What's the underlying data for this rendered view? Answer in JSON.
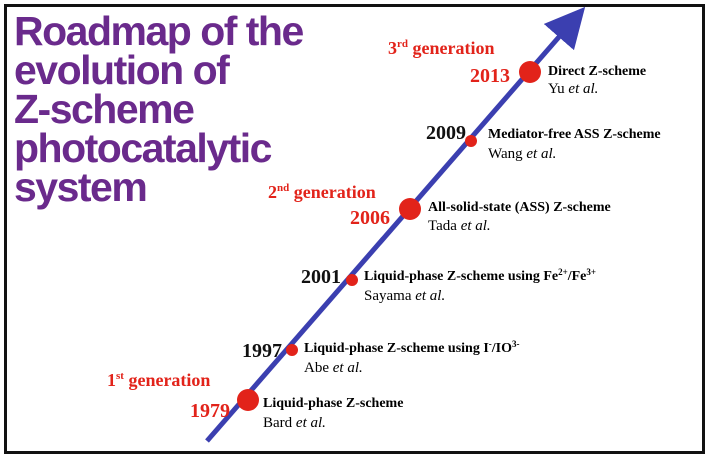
{
  "title_lines": [
    "Roadmap of the",
    "evolution of",
    "Z-scheme",
    "photocatalytic",
    "system"
  ],
  "colors": {
    "title": "#6a2a8c",
    "arrow": "#3b3fb0",
    "marker": "#e2231a",
    "generation_text": "#e2231a",
    "year_text": "#111111"
  },
  "generations": [
    {
      "ordinal": "1",
      "suffix": "st",
      "label": "generation"
    },
    {
      "ordinal": "2",
      "suffix": "nd",
      "label": "generation"
    },
    {
      "ordinal": "3",
      "suffix": "rd",
      "label": "generation"
    }
  ],
  "milestones": [
    {
      "year": "1979",
      "description": "Liquid-phase Z-scheme",
      "author_name": "Bard",
      "author_etal": "et al."
    },
    {
      "year": "1997",
      "description_parts": [
        "Liquid-phase Z-scheme using I",
        "-",
        "/IO",
        "3-"
      ],
      "author_name": "Abe",
      "author_etal": "et al."
    },
    {
      "year": "2001",
      "description_parts": [
        "Liquid-phase Z-scheme using Fe",
        "2+",
        "/Fe",
        "3+"
      ],
      "author_name": "Sayama",
      "author_etal": "et al."
    },
    {
      "year": "2006",
      "description": "All-solid-state (ASS) Z-scheme",
      "author_name": "Tada",
      "author_etal": "et al."
    },
    {
      "year": "2009",
      "description": "Mediator-free ASS Z-scheme",
      "author_name": "Wang",
      "author_etal": "et al."
    },
    {
      "year": "2013",
      "description": "Direct Z-scheme",
      "author_name": "Yu",
      "author_etal": "et al."
    }
  ]
}
